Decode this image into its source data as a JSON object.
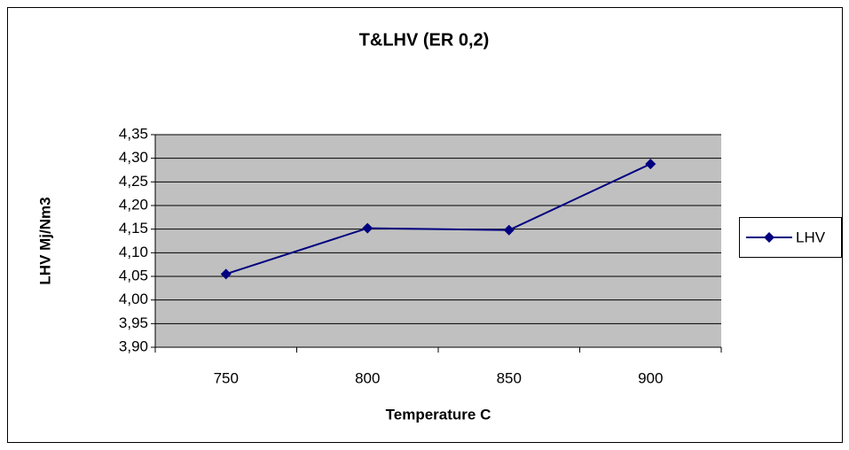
{
  "chart_data": {
    "type": "line",
    "title": "T&LHV (ER 0,2)",
    "x_label": "Temperature C",
    "y_label": "LHV Mj/Nm3",
    "categories": [
      "750",
      "800",
      "850",
      "900"
    ],
    "series": [
      {
        "name": "LHV",
        "color": "#000080",
        "values": [
          4.055,
          4.152,
          4.148,
          4.288
        ]
      }
    ],
    "ylim": [
      3.9,
      4.35
    ],
    "yticks": [
      {
        "value": 3.9,
        "label": "3,90"
      },
      {
        "value": 3.95,
        "label": "3,95"
      },
      {
        "value": 4.0,
        "label": "4,00"
      },
      {
        "value": 4.05,
        "label": "4,05"
      },
      {
        "value": 4.1,
        "label": "4,10"
      },
      {
        "value": 4.15,
        "label": "4,15"
      },
      {
        "value": 4.2,
        "label": "4,20"
      },
      {
        "value": 4.25,
        "label": "4,25"
      },
      {
        "value": 4.3,
        "label": "4,30"
      },
      {
        "value": 4.35,
        "label": "4,35"
      }
    ],
    "grid": true,
    "legend": "right",
    "plot_background": "#c0c0c0"
  }
}
